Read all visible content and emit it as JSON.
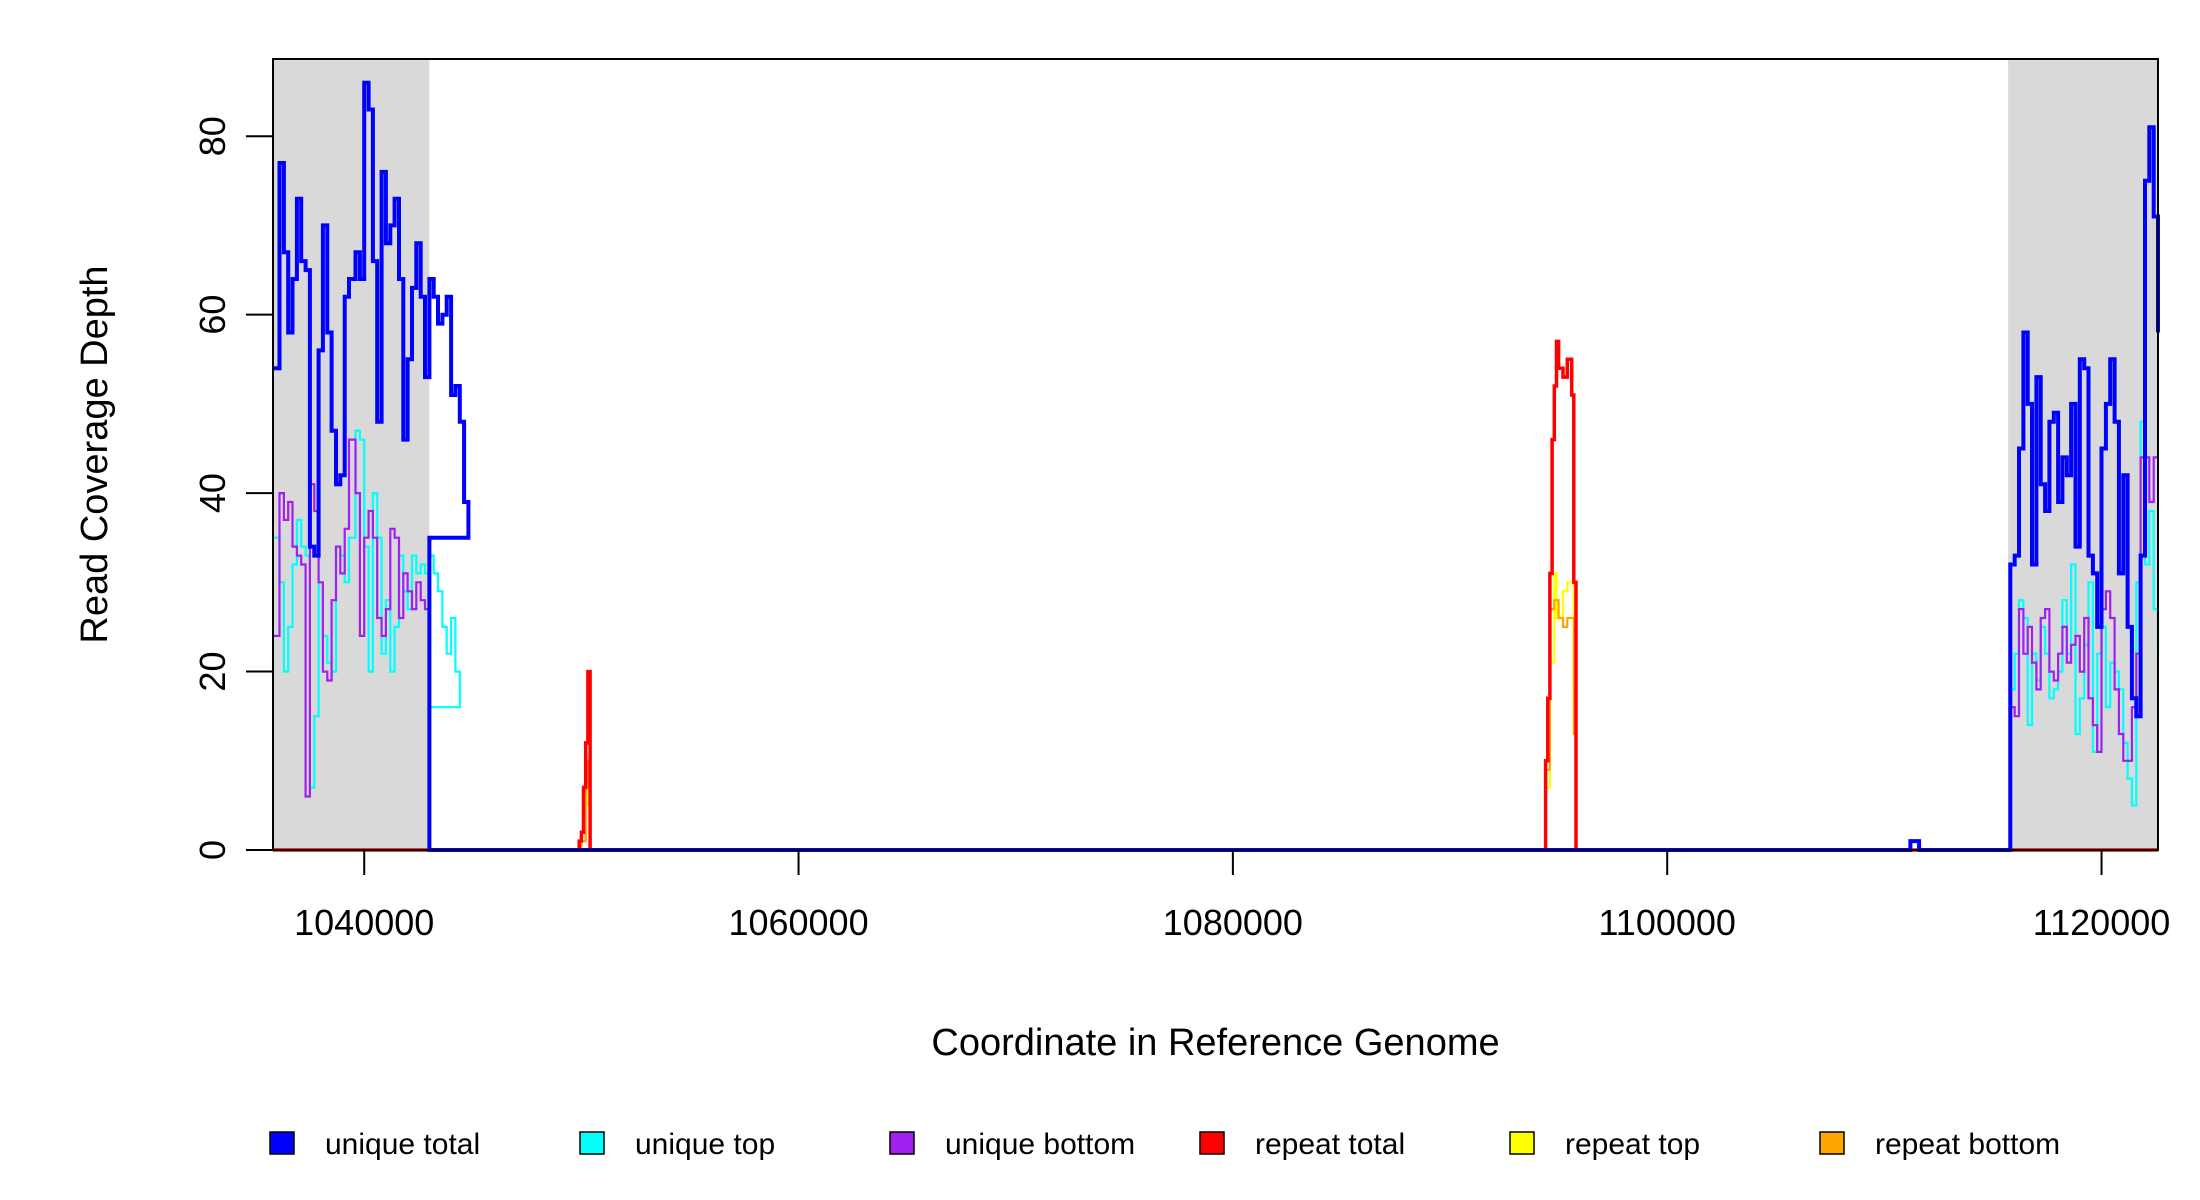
{
  "chart_data": {
    "type": "line",
    "xlabel": "Coordinate in Reference Genome",
    "ylabel": "Read Coverage Depth",
    "xlim": [
      1035800,
      1122600
    ],
    "ylim": [
      0,
      90
    ],
    "x_ticks": [
      1040000,
      1060000,
      1080000,
      1100000,
      1120000
    ],
    "x_tick_labels": [
      "1040000",
      "1060000",
      "1080000",
      "1100000",
      "1120000"
    ],
    "y_ticks": [
      0,
      20,
      40,
      60,
      80
    ],
    "y_tick_labels": [
      "0",
      "20",
      "40",
      "60",
      "80"
    ],
    "grid": false,
    "legend_position": "bottom",
    "shaded_regions": [
      [
        1035800,
        1043000
      ],
      [
        1115700,
        1122600
      ]
    ],
    "series": [
      {
        "name": "unique total",
        "color": "#0000ff",
        "points": [
          [
            1035800,
            54
          ],
          [
            1036100,
            77
          ],
          [
            1036300,
            67
          ],
          [
            1036500,
            58
          ],
          [
            1036700,
            64
          ],
          [
            1036900,
            73
          ],
          [
            1037100,
            66
          ],
          [
            1037300,
            65
          ],
          [
            1037500,
            34
          ],
          [
            1037700,
            33
          ],
          [
            1037900,
            56
          ],
          [
            1038100,
            70
          ],
          [
            1038300,
            58
          ],
          [
            1038500,
            47
          ],
          [
            1038700,
            41
          ],
          [
            1038900,
            42
          ],
          [
            1039100,
            62
          ],
          [
            1039300,
            64
          ],
          [
            1039600,
            67
          ],
          [
            1039800,
            64
          ],
          [
            1040000,
            86
          ],
          [
            1040200,
            83
          ],
          [
            1040400,
            66
          ],
          [
            1040600,
            48
          ],
          [
            1040800,
            76
          ],
          [
            1041000,
            68
          ],
          [
            1041200,
            70
          ],
          [
            1041400,
            73
          ],
          [
            1041600,
            64
          ],
          [
            1041800,
            46
          ],
          [
            1042000,
            55
          ],
          [
            1042200,
            63
          ],
          [
            1042400,
            68
          ],
          [
            1042600,
            62
          ],
          [
            1042800,
            53
          ],
          [
            1043000,
            64
          ],
          [
            1043200,
            62
          ],
          [
            1043400,
            59
          ],
          [
            1043600,
            60
          ],
          [
            1043800,
            62
          ],
          [
            1044000,
            51
          ],
          [
            1044200,
            52
          ],
          [
            1044400,
            48
          ],
          [
            1044600,
            39
          ],
          [
            1044800,
            35
          ],
          [
            1043000,
            0
          ],
          [
            1111000,
            0
          ],
          [
            1111200,
            1
          ],
          [
            1111600,
            0
          ],
          [
            1115700,
            0
          ],
          [
            1115800,
            32
          ],
          [
            1116000,
            33
          ],
          [
            1116200,
            45
          ],
          [
            1116400,
            58
          ],
          [
            1116600,
            50
          ],
          [
            1116800,
            32
          ],
          [
            1117000,
            53
          ],
          [
            1117200,
            41
          ],
          [
            1117400,
            38
          ],
          [
            1117600,
            48
          ],
          [
            1117800,
            49
          ],
          [
            1118000,
            39
          ],
          [
            1118200,
            44
          ],
          [
            1118400,
            42
          ],
          [
            1118600,
            50
          ],
          [
            1118800,
            34
          ],
          [
            1119000,
            55
          ],
          [
            1119200,
            54
          ],
          [
            1119400,
            33
          ],
          [
            1119600,
            31
          ],
          [
            1119800,
            25
          ],
          [
            1120000,
            45
          ],
          [
            1120200,
            50
          ],
          [
            1120400,
            55
          ],
          [
            1120600,
            48
          ],
          [
            1120800,
            31
          ],
          [
            1121000,
            42
          ],
          [
            1121200,
            25
          ],
          [
            1121400,
            17
          ],
          [
            1121600,
            15
          ],
          [
            1121800,
            33
          ],
          [
            1122000,
            75
          ],
          [
            1122200,
            81
          ],
          [
            1122400,
            71
          ],
          [
            1122600,
            58
          ]
        ]
      },
      {
        "name": "unique top",
        "color": "#00ffff",
        "points": [
          [
            1035800,
            35
          ],
          [
            1036100,
            30
          ],
          [
            1036300,
            20
          ],
          [
            1036500,
            25
          ],
          [
            1036700,
            32
          ],
          [
            1036900,
            37
          ],
          [
            1037100,
            34
          ],
          [
            1037300,
            33
          ],
          [
            1037500,
            7
          ],
          [
            1037700,
            15
          ],
          [
            1037900,
            30
          ],
          [
            1038100,
            24
          ],
          [
            1038300,
            21
          ],
          [
            1038500,
            20
          ],
          [
            1038700,
            34
          ],
          [
            1038900,
            33
          ],
          [
            1039100,
            30
          ],
          [
            1039300,
            35
          ],
          [
            1039600,
            47
          ],
          [
            1039800,
            46
          ],
          [
            1040000,
            34
          ],
          [
            1040200,
            20
          ],
          [
            1040400,
            40
          ],
          [
            1040600,
            35
          ],
          [
            1040800,
            22
          ],
          [
            1041000,
            28
          ],
          [
            1041200,
            20
          ],
          [
            1041400,
            25
          ],
          [
            1041600,
            33
          ],
          [
            1041800,
            29
          ],
          [
            1042000,
            27
          ],
          [
            1042200,
            33
          ],
          [
            1042400,
            31
          ],
          [
            1042600,
            32
          ],
          [
            1042800,
            31
          ],
          [
            1043000,
            33
          ],
          [
            1043200,
            31
          ],
          [
            1043400,
            29
          ],
          [
            1043600,
            25
          ],
          [
            1043800,
            22
          ],
          [
            1044000,
            26
          ],
          [
            1044200,
            20
          ],
          [
            1044400,
            16
          ],
          [
            1043000,
            0
          ],
          [
            1115700,
            0
          ],
          [
            1115800,
            18
          ],
          [
            1116000,
            22
          ],
          [
            1116200,
            28
          ],
          [
            1116400,
            26
          ],
          [
            1116600,
            14
          ],
          [
            1116800,
            22
          ],
          [
            1117000,
            19
          ],
          [
            1117200,
            25
          ],
          [
            1117400,
            22
          ],
          [
            1117600,
            17
          ],
          [
            1117800,
            18
          ],
          [
            1118000,
            20
          ],
          [
            1118200,
            28
          ],
          [
            1118400,
            22
          ],
          [
            1118600,
            32
          ],
          [
            1118800,
            13
          ],
          [
            1119000,
            17
          ],
          [
            1119200,
            23
          ],
          [
            1119400,
            30
          ],
          [
            1119600,
            11
          ],
          [
            1119800,
            22
          ],
          [
            1120000,
            25
          ],
          [
            1120200,
            16
          ],
          [
            1120400,
            21
          ],
          [
            1120600,
            20
          ],
          [
            1120800,
            18
          ],
          [
            1121000,
            12
          ],
          [
            1121200,
            8
          ],
          [
            1121400,
            5
          ],
          [
            1121600,
            30
          ],
          [
            1121800,
            48
          ],
          [
            1122000,
            32
          ],
          [
            1122200,
            38
          ],
          [
            1122400,
            27
          ],
          [
            1122600,
            22
          ]
        ]
      },
      {
        "name": "unique bottom",
        "color": "#a020f0",
        "points": [
          [
            1035800,
            24
          ],
          [
            1036100,
            40
          ],
          [
            1036300,
            37
          ],
          [
            1036500,
            39
          ],
          [
            1036700,
            34
          ],
          [
            1036900,
            33
          ],
          [
            1037100,
            32
          ],
          [
            1037300,
            6
          ],
          [
            1037500,
            41
          ],
          [
            1037700,
            38
          ],
          [
            1037900,
            30
          ],
          [
            1038100,
            20
          ],
          [
            1038300,
            19
          ],
          [
            1038500,
            28
          ],
          [
            1038700,
            34
          ],
          [
            1038900,
            31
          ],
          [
            1039100,
            36
          ],
          [
            1039300,
            46
          ],
          [
            1039600,
            40
          ],
          [
            1039800,
            24
          ],
          [
            1040000,
            35
          ],
          [
            1040200,
            38
          ],
          [
            1040400,
            35
          ],
          [
            1040600,
            26
          ],
          [
            1040800,
            24
          ],
          [
            1041000,
            27
          ],
          [
            1041200,
            36
          ],
          [
            1041400,
            35
          ],
          [
            1041600,
            26
          ],
          [
            1041800,
            31
          ],
          [
            1042000,
            29
          ],
          [
            1042200,
            27
          ],
          [
            1042400,
            30
          ],
          [
            1042600,
            28
          ],
          [
            1042800,
            27
          ],
          [
            1043000,
            20
          ],
          [
            1043000,
            0
          ],
          [
            1115700,
            0
          ],
          [
            1115800,
            16
          ],
          [
            1116000,
            15
          ],
          [
            1116200,
            27
          ],
          [
            1116400,
            22
          ],
          [
            1116600,
            25
          ],
          [
            1116800,
            21
          ],
          [
            1117000,
            18
          ],
          [
            1117200,
            26
          ],
          [
            1117400,
            27
          ],
          [
            1117600,
            20
          ],
          [
            1117800,
            19
          ],
          [
            1118000,
            22
          ],
          [
            1118200,
            25
          ],
          [
            1118400,
            21
          ],
          [
            1118600,
            23
          ],
          [
            1118800,
            24
          ],
          [
            1119000,
            20
          ],
          [
            1119200,
            26
          ],
          [
            1119400,
            17
          ],
          [
            1119600,
            14
          ],
          [
            1119800,
            11
          ],
          [
            1120000,
            27
          ],
          [
            1120200,
            29
          ],
          [
            1120400,
            26
          ],
          [
            1120600,
            18
          ],
          [
            1120800,
            13
          ],
          [
            1121000,
            10
          ],
          [
            1121200,
            10
          ],
          [
            1121400,
            16
          ],
          [
            1121600,
            22
          ],
          [
            1121800,
            44
          ],
          [
            1122000,
            44
          ],
          [
            1122200,
            39
          ],
          [
            1122400,
            44
          ],
          [
            1122600,
            44
          ]
        ]
      },
      {
        "name": "repeat total",
        "color": "#ff0000",
        "points": [
          [
            1035800,
            0
          ],
          [
            1049800,
            0
          ],
          [
            1049900,
            1
          ],
          [
            1050000,
            2
          ],
          [
            1050100,
            7
          ],
          [
            1050200,
            12
          ],
          [
            1050300,
            20
          ],
          [
            1050400,
            0
          ],
          [
            1094300,
            0
          ],
          [
            1094400,
            10
          ],
          [
            1094500,
            17
          ],
          [
            1094600,
            31
          ],
          [
            1094700,
            46
          ],
          [
            1094800,
            52
          ],
          [
            1094900,
            57
          ],
          [
            1095000,
            54
          ],
          [
            1095200,
            53
          ],
          [
            1095400,
            55
          ],
          [
            1095600,
            51
          ],
          [
            1095700,
            30
          ],
          [
            1095800,
            0
          ],
          [
            1122600,
            0
          ]
        ]
      },
      {
        "name": "repeat top",
        "color": "#ffff00",
        "points": [
          [
            1035800,
            0
          ],
          [
            1049800,
            0
          ],
          [
            1050000,
            1
          ],
          [
            1050200,
            5
          ],
          [
            1050300,
            10
          ],
          [
            1050400,
            0
          ],
          [
            1094300,
            0
          ],
          [
            1094400,
            7
          ],
          [
            1094600,
            21
          ],
          [
            1094800,
            31
          ],
          [
            1094900,
            26
          ],
          [
            1095200,
            29
          ],
          [
            1095400,
            30
          ],
          [
            1095700,
            18
          ],
          [
            1095800,
            0
          ],
          [
            1122600,
            0
          ]
        ]
      },
      {
        "name": "repeat bottom",
        "color": "#ffa500",
        "points": [
          [
            1035800,
            0
          ],
          [
            1049800,
            0
          ],
          [
            1050000,
            1
          ],
          [
            1050200,
            7
          ],
          [
            1050300,
            10
          ],
          [
            1050400,
            0
          ],
          [
            1094300,
            0
          ],
          [
            1094400,
            9
          ],
          [
            1094600,
            27
          ],
          [
            1094800,
            28
          ],
          [
            1095000,
            26
          ],
          [
            1095200,
            25
          ],
          [
            1095400,
            26
          ],
          [
            1095700,
            13
          ],
          [
            1095800,
            0
          ],
          [
            1122600,
            0
          ]
        ]
      }
    ]
  }
}
